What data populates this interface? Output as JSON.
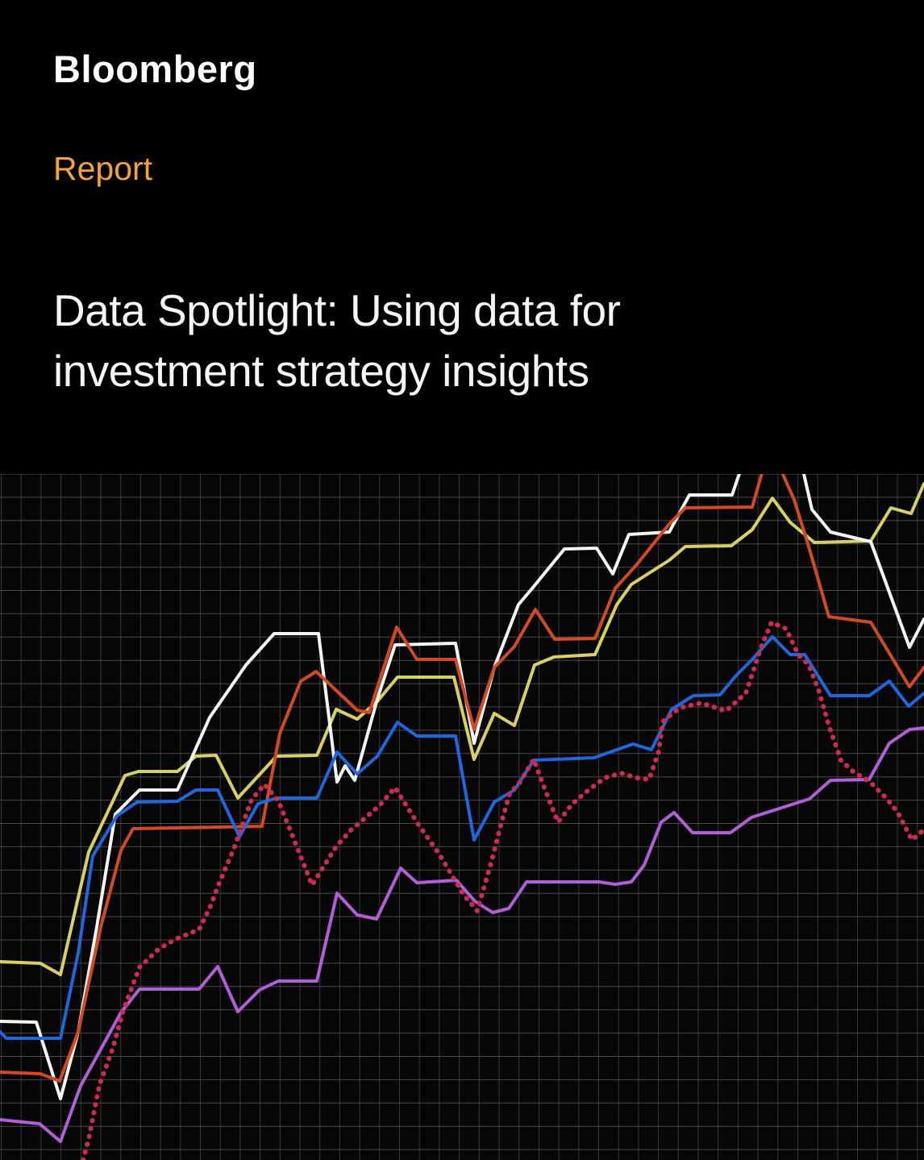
{
  "header": {
    "brand": "Bloomberg",
    "eyebrow": "Report",
    "eyebrow_color": "#f3a33a",
    "title_line1": "Data Spotlight: Using data for",
    "title_line2": "investment strategy insights"
  },
  "chart_data": {
    "type": "line",
    "title": "",
    "xlabel": "",
    "ylabel": "",
    "legend_position": "none",
    "axis_labels_visible": false,
    "background": "#060606",
    "x_range": [
      0,
      1146
    ],
    "y_range": [
      0,
      851
    ],
    "grid": {
      "show": true,
      "x_step": 24.7,
      "x_offset": 1.5,
      "y_step": 28.9,
      "y_offset": 0,
      "vline_color": "#383838",
      "hline_color": "#4a4a4a"
    },
    "series": [
      {
        "name": "yellow",
        "color": "#d8d062",
        "style": "solid",
        "stroke_width": 4,
        "points": [
          [
            0,
            246
          ],
          [
            50,
            244
          ],
          [
            75,
            230
          ],
          [
            110,
            382
          ],
          [
            155,
            477
          ],
          [
            172,
            482
          ],
          [
            220,
            482
          ],
          [
            243,
            501
          ],
          [
            268,
            502
          ],
          [
            295,
            449
          ],
          [
            343,
            501
          ],
          [
            393,
            502
          ],
          [
            417,
            559
          ],
          [
            443,
            547
          ],
          [
            468,
            569
          ],
          [
            493,
            599
          ],
          [
            563,
            599
          ],
          [
            588,
            497
          ],
          [
            613,
            554
          ],
          [
            638,
            539
          ],
          [
            663,
            614
          ],
          [
            687,
            624
          ],
          [
            738,
            627
          ],
          [
            765,
            689
          ],
          [
            783,
            714
          ],
          [
            830,
            744
          ],
          [
            850,
            761
          ],
          [
            907,
            762
          ],
          [
            933,
            782
          ],
          [
            958,
            821
          ],
          [
            980,
            791
          ],
          [
            1010,
            766
          ],
          [
            1080,
            768
          ],
          [
            1105,
            809
          ],
          [
            1130,
            802
          ],
          [
            1146,
            839
          ]
        ]
      },
      {
        "name": "white",
        "color": "#f4f4f2",
        "style": "solid",
        "stroke_width": 4,
        "points": [
          [
            0,
            172
          ],
          [
            45,
            171
          ],
          [
            75,
            76
          ],
          [
            97,
            159
          ],
          [
            120,
            289
          ],
          [
            143,
            429
          ],
          [
            173,
            459
          ],
          [
            220,
            459
          ],
          [
            260,
            549
          ],
          [
            305,
            614
          ],
          [
            340,
            653
          ],
          [
            395,
            653
          ],
          [
            418,
            469
          ],
          [
            428,
            489
          ],
          [
            440,
            471
          ],
          [
            468,
            572
          ],
          [
            490,
            639
          ],
          [
            565,
            641
          ],
          [
            588,
            517
          ],
          [
            613,
            611
          ],
          [
            643,
            689
          ],
          [
            660,
            709
          ],
          [
            700,
            758
          ],
          [
            740,
            759
          ],
          [
            760,
            727
          ],
          [
            780,
            776
          ],
          [
            830,
            779
          ],
          [
            855,
            825
          ],
          [
            908,
            825
          ],
          [
            935,
            905
          ],
          [
            978,
            905
          ],
          [
            997,
            851
          ],
          [
            1007,
            807
          ],
          [
            1030,
            779
          ],
          [
            1080,
            767
          ],
          [
            1128,
            636
          ],
          [
            1146,
            671
          ]
        ]
      },
      {
        "name": "orange",
        "color": "#d14a24",
        "style": "solid",
        "stroke_width": 4,
        "points": [
          [
            0,
            109
          ],
          [
            50,
            107
          ],
          [
            74,
            98
          ],
          [
            97,
            159
          ],
          [
            125,
            289
          ],
          [
            150,
            384
          ],
          [
            165,
            411
          ],
          [
            325,
            414
          ],
          [
            347,
            529
          ],
          [
            373,
            594
          ],
          [
            392,
            606
          ],
          [
            443,
            558
          ],
          [
            458,
            555
          ],
          [
            492,
            661
          ],
          [
            517,
            621
          ],
          [
            565,
            621
          ],
          [
            588,
            534
          ],
          [
            613,
            611
          ],
          [
            638,
            637
          ],
          [
            664,
            683
          ],
          [
            688,
            646
          ],
          [
            738,
            647
          ],
          [
            763,
            709
          ],
          [
            790,
            739
          ],
          [
            830,
            789
          ],
          [
            850,
            809
          ],
          [
            933,
            810
          ],
          [
            950,
            870
          ],
          [
            963,
            870
          ],
          [
            973,
            846
          ],
          [
            985,
            819
          ],
          [
            1003,
            761
          ],
          [
            1028,
            674
          ],
          [
            1080,
            667
          ],
          [
            1128,
            587
          ],
          [
            1146,
            611
          ]
        ]
      },
      {
        "name": "blue",
        "color": "#2066dc",
        "style": "solid",
        "stroke_width": 4,
        "points": [
          [
            0,
            159
          ],
          [
            8,
            151
          ],
          [
            75,
            151
          ],
          [
            97,
            257
          ],
          [
            115,
            377
          ],
          [
            145,
            427
          ],
          [
            170,
            444
          ],
          [
            220,
            445
          ],
          [
            243,
            459
          ],
          [
            270,
            459
          ],
          [
            297,
            401
          ],
          [
            320,
            442
          ],
          [
            343,
            449
          ],
          [
            393,
            449
          ],
          [
            418,
            506
          ],
          [
            443,
            479
          ],
          [
            468,
            501
          ],
          [
            493,
            543
          ],
          [
            517,
            526
          ],
          [
            565,
            526
          ],
          [
            588,
            397
          ],
          [
            613,
            444
          ],
          [
            638,
            459
          ],
          [
            662,
            496
          ],
          [
            737,
            499
          ],
          [
            785,
            516
          ],
          [
            808,
            509
          ],
          [
            833,
            559
          ],
          [
            860,
            576
          ],
          [
            893,
            577
          ],
          [
            913,
            601
          ],
          [
            933,
            621
          ],
          [
            958,
            649
          ],
          [
            980,
            627
          ],
          [
            998,
            627
          ],
          [
            1030,
            576
          ],
          [
            1078,
            576
          ],
          [
            1103,
            594
          ],
          [
            1127,
            563
          ],
          [
            1146,
            579
          ]
        ]
      },
      {
        "name": "purple",
        "color": "#b05fd6",
        "style": "solid",
        "stroke_width": 4,
        "points": [
          [
            0,
            50
          ],
          [
            49,
            45
          ],
          [
            75,
            23
          ],
          [
            100,
            92
          ],
          [
            150,
            183
          ],
          [
            173,
            212
          ],
          [
            247,
            212
          ],
          [
            270,
            240
          ],
          [
            295,
            184
          ],
          [
            322,
            211
          ],
          [
            345,
            222
          ],
          [
            393,
            222
          ],
          [
            418,
            331
          ],
          [
            443,
            304
          ],
          [
            467,
            299
          ],
          [
            497,
            362
          ],
          [
            517,
            344
          ],
          [
            566,
            347
          ],
          [
            589,
            321
          ],
          [
            611,
            307
          ],
          [
            631,
            312
          ],
          [
            653,
            345
          ],
          [
            743,
            345
          ],
          [
            763,
            342
          ],
          [
            783,
            345
          ],
          [
            799,
            366
          ],
          [
            820,
            419
          ],
          [
            836,
            431
          ],
          [
            859,
            406
          ],
          [
            906,
            406
          ],
          [
            932,
            425
          ],
          [
            1004,
            448
          ],
          [
            1030,
            471
          ],
          [
            1078,
            472
          ],
          [
            1103,
            517
          ],
          [
            1128,
            534
          ],
          [
            1146,
            536
          ]
        ]
      },
      {
        "name": "dotted-crimson",
        "color": "#cf2b52",
        "style": "dotted",
        "stroke_width": 6,
        "points": [
          [
            103,
            0
          ],
          [
            110,
            26
          ],
          [
            123,
            92
          ],
          [
            140,
            139
          ],
          [
            153,
            186
          ],
          [
            173,
            239
          ],
          [
            197,
            262
          ],
          [
            218,
            274
          ],
          [
            247,
            286
          ],
          [
            262,
            317
          ],
          [
            270,
            339
          ],
          [
            290,
            386
          ],
          [
            312,
            447
          ],
          [
            328,
            466
          ],
          [
            345,
            446
          ],
          [
            362,
            404
          ],
          [
            387,
            341
          ],
          [
            417,
            389
          ],
          [
            435,
            409
          ],
          [
            470,
            439
          ],
          [
            490,
            462
          ],
          [
            517,
            419
          ],
          [
            545,
            379
          ],
          [
            575,
            329
          ],
          [
            592,
            309
          ],
          [
            610,
            372
          ],
          [
            622,
            419
          ],
          [
            632,
            454
          ],
          [
            645,
            469
          ],
          [
            662,
            497
          ],
          [
            675,
            462
          ],
          [
            692,
            419
          ],
          [
            710,
            442
          ],
          [
            730,
            459
          ],
          [
            750,
            474
          ],
          [
            770,
            480
          ],
          [
            790,
            474
          ],
          [
            805,
            472
          ],
          [
            817,
            507
          ],
          [
            822,
            544
          ],
          [
            843,
            561
          ],
          [
            870,
            567
          ],
          [
            900,
            557
          ],
          [
            925,
            579
          ],
          [
            945,
            639
          ],
          [
            957,
            667
          ],
          [
            975,
            659
          ],
          [
            990,
            627
          ],
          [
            1003,
            614
          ],
          [
            1015,
            584
          ],
          [
            1028,
            539
          ],
          [
            1043,
            496
          ],
          [
            1058,
            482
          ],
          [
            1079,
            469
          ],
          [
            1099,
            449
          ],
          [
            1113,
            432
          ],
          [
            1131,
            397
          ],
          [
            1141,
            406
          ],
          [
            1146,
            409
          ]
        ]
      }
    ]
  }
}
